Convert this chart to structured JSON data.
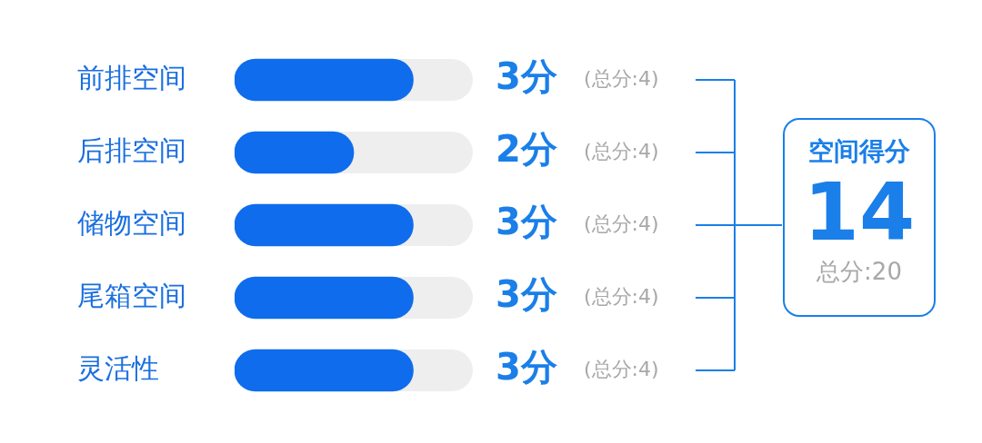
{
  "chart_data": {
    "type": "bar",
    "orientation": "horizontal",
    "categories": [
      "前排空间",
      "后排空间",
      "储物空间",
      "尾箱空间",
      "灵活性"
    ],
    "values": [
      3,
      2,
      3,
      3,
      3
    ],
    "color": "#0f6cec",
    "xlim": [
      0,
      4
    ],
    "value_labels": [
      "3分",
      "2分",
      "3分",
      "3分",
      "3分"
    ],
    "annotations": [
      "(总分:4)",
      "(总分:4)",
      "(总分:4)",
      "(总分:4)",
      "(总分:4)",
      "空间得分",
      "14",
      "总分:20"
    ],
    "tick_labels": "y",
    "legend": false
  }
}
